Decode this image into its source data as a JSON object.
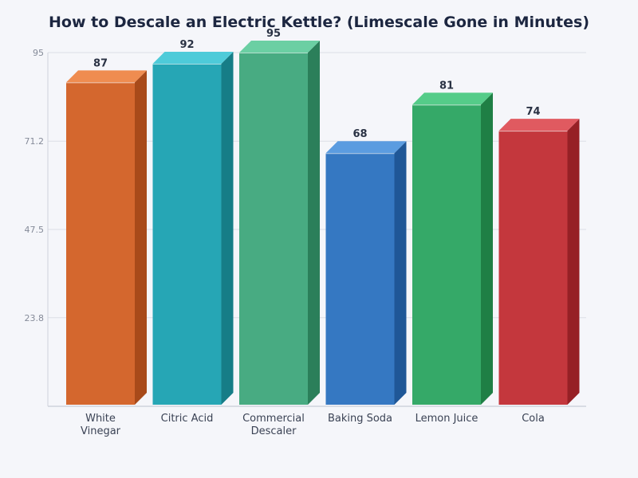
{
  "chart_data": {
    "type": "bar",
    "title": "How to Descale an Electric Kettle? (Limescale Gone in Minutes)",
    "xlabel": "",
    "ylabel": "",
    "ylim": [
      0,
      95
    ],
    "yticks": [
      "23.8",
      "47.5",
      "71.2",
      "95"
    ],
    "grid": true,
    "categories": [
      [
        "White",
        "Vinegar"
      ],
      [
        "Citric Acid"
      ],
      [
        "Commercial",
        "Descaler"
      ],
      [
        "Baking Soda"
      ],
      [
        "Lemon Juice"
      ],
      [
        "Cola"
      ]
    ],
    "values": [
      87,
      92,
      95,
      68,
      81,
      74
    ],
    "data_labels": [
      "87",
      "92",
      "95",
      "68",
      "81",
      "74"
    ],
    "colors": [
      {
        "front": "#d4672e",
        "top": "#ef8c50",
        "side": "#a84a1a"
      },
      {
        "front": "#26a6b5",
        "top": "#4ecbd9",
        "side": "#167d87"
      },
      {
        "front": "#48ab82",
        "top": "#6bcfa3",
        "side": "#2b7f5a"
      },
      {
        "front": "#3578c2",
        "top": "#5b9ce0",
        "side": "#1f5797"
      },
      {
        "front": "#35a968",
        "top": "#55cc89",
        "side": "#1f7f45"
      },
      {
        "front": "#c4373d",
        "top": "#e05a60",
        "side": "#962025"
      }
    ]
  }
}
